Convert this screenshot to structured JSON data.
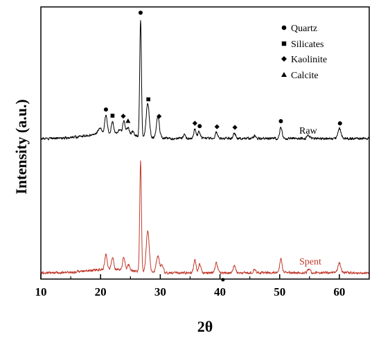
{
  "chart_data": {
    "type": "line",
    "title": "",
    "xlabel": "2θ",
    "ylabel": "Intensity (a.u.)",
    "xlim": [
      10,
      65
    ],
    "xticks": [
      10,
      20,
      30,
      40,
      50,
      60
    ],
    "yticks_shown": false,
    "grid": false,
    "legend_position": "top-right",
    "legend": [
      {
        "label": "Quartz",
        "marker": "circle"
      },
      {
        "label": "Silicates",
        "marker": "square"
      },
      {
        "label": "Kaolinite",
        "marker": "diamond"
      },
      {
        "label": "Calcite",
        "marker": "triangle"
      }
    ],
    "series": [
      {
        "name": "Raw",
        "color": "#000000",
        "baseline": 200,
        "noise": 2.5,
        "background_hump": {
          "center": 21.5,
          "width": 3.5,
          "height": 8
        },
        "peaks": [
          {
            "x": 19.9,
            "h": 8,
            "w": 0.3
          },
          {
            "x": 20.9,
            "h": 25,
            "w": 0.2
          },
          {
            "x": 22.0,
            "h": 16,
            "w": 0.2
          },
          {
            "x": 23.2,
            "h": 6,
            "w": 0.2
          },
          {
            "x": 23.9,
            "h": 19,
            "w": 0.2
          },
          {
            "x": 24.6,
            "h": 11,
            "w": 0.2
          },
          {
            "x": 25.4,
            "h": 6,
            "w": 0.2
          },
          {
            "x": 26.7,
            "h": 170,
            "w": 0.14
          },
          {
            "x": 27.9,
            "h": 50,
            "w": 0.25
          },
          {
            "x": 29.6,
            "h": 31,
            "w": 0.25
          },
          {
            "x": 34.0,
            "h": 5,
            "w": 0.2
          },
          {
            "x": 35.8,
            "h": 13,
            "w": 0.2
          },
          {
            "x": 36.5,
            "h": 10,
            "w": 0.2
          },
          {
            "x": 39.4,
            "h": 9,
            "w": 0.2
          },
          {
            "x": 42.4,
            "h": 8,
            "w": 0.2
          },
          {
            "x": 45.8,
            "h": 4,
            "w": 0.2
          },
          {
            "x": 50.2,
            "h": 16,
            "w": 0.2
          },
          {
            "x": 54.8,
            "h": 4,
            "w": 0.2
          },
          {
            "x": 60.0,
            "h": 14,
            "w": 0.25
          }
        ],
        "markers": [
          {
            "x": 20.9,
            "type": "circle"
          },
          {
            "x": 22.0,
            "type": "square"
          },
          {
            "x": 23.8,
            "type": "diamond"
          },
          {
            "x": 24.6,
            "type": "triangle"
          },
          {
            "x": 26.7,
            "type": "circle"
          },
          {
            "x": 28.0,
            "type": "square"
          },
          {
            "x": 29.8,
            "type": "diamond"
          },
          {
            "x": 35.8,
            "type": "diamond"
          },
          {
            "x": 36.6,
            "type": "circle"
          },
          {
            "x": 39.5,
            "type": "diamond"
          },
          {
            "x": 42.5,
            "type": "diamond"
          },
          {
            "x": 50.2,
            "type": "circle"
          },
          {
            "x": 60.1,
            "type": "circle"
          }
        ]
      },
      {
        "name": "Spent",
        "color": "#c0392b",
        "baseline": 394,
        "noise": 2.5,
        "background_hump": {
          "center": 21.5,
          "width": 3.5,
          "height": 5
        },
        "peaks": [
          {
            "x": 20.9,
            "h": 22,
            "w": 0.2
          },
          {
            "x": 22.0,
            "h": 17,
            "w": 0.2
          },
          {
            "x": 23.9,
            "h": 19,
            "w": 0.2
          },
          {
            "x": 24.7,
            "h": 8,
            "w": 0.2
          },
          {
            "x": 26.7,
            "h": 160,
            "w": 0.14
          },
          {
            "x": 27.9,
            "h": 60,
            "w": 0.25
          },
          {
            "x": 29.6,
            "h": 24,
            "w": 0.25
          },
          {
            "x": 30.3,
            "h": 12,
            "w": 0.2
          },
          {
            "x": 35.8,
            "h": 18,
            "w": 0.2
          },
          {
            "x": 36.6,
            "h": 12,
            "w": 0.2
          },
          {
            "x": 39.4,
            "h": 14,
            "w": 0.2
          },
          {
            "x": 42.4,
            "h": 10,
            "w": 0.2
          },
          {
            "x": 45.8,
            "h": 6,
            "w": 0.2
          },
          {
            "x": 50.2,
            "h": 20,
            "w": 0.2
          },
          {
            "x": 54.9,
            "h": 6,
            "w": 0.2
          },
          {
            "x": 60.0,
            "h": 14,
            "w": 0.25
          }
        ]
      }
    ]
  }
}
